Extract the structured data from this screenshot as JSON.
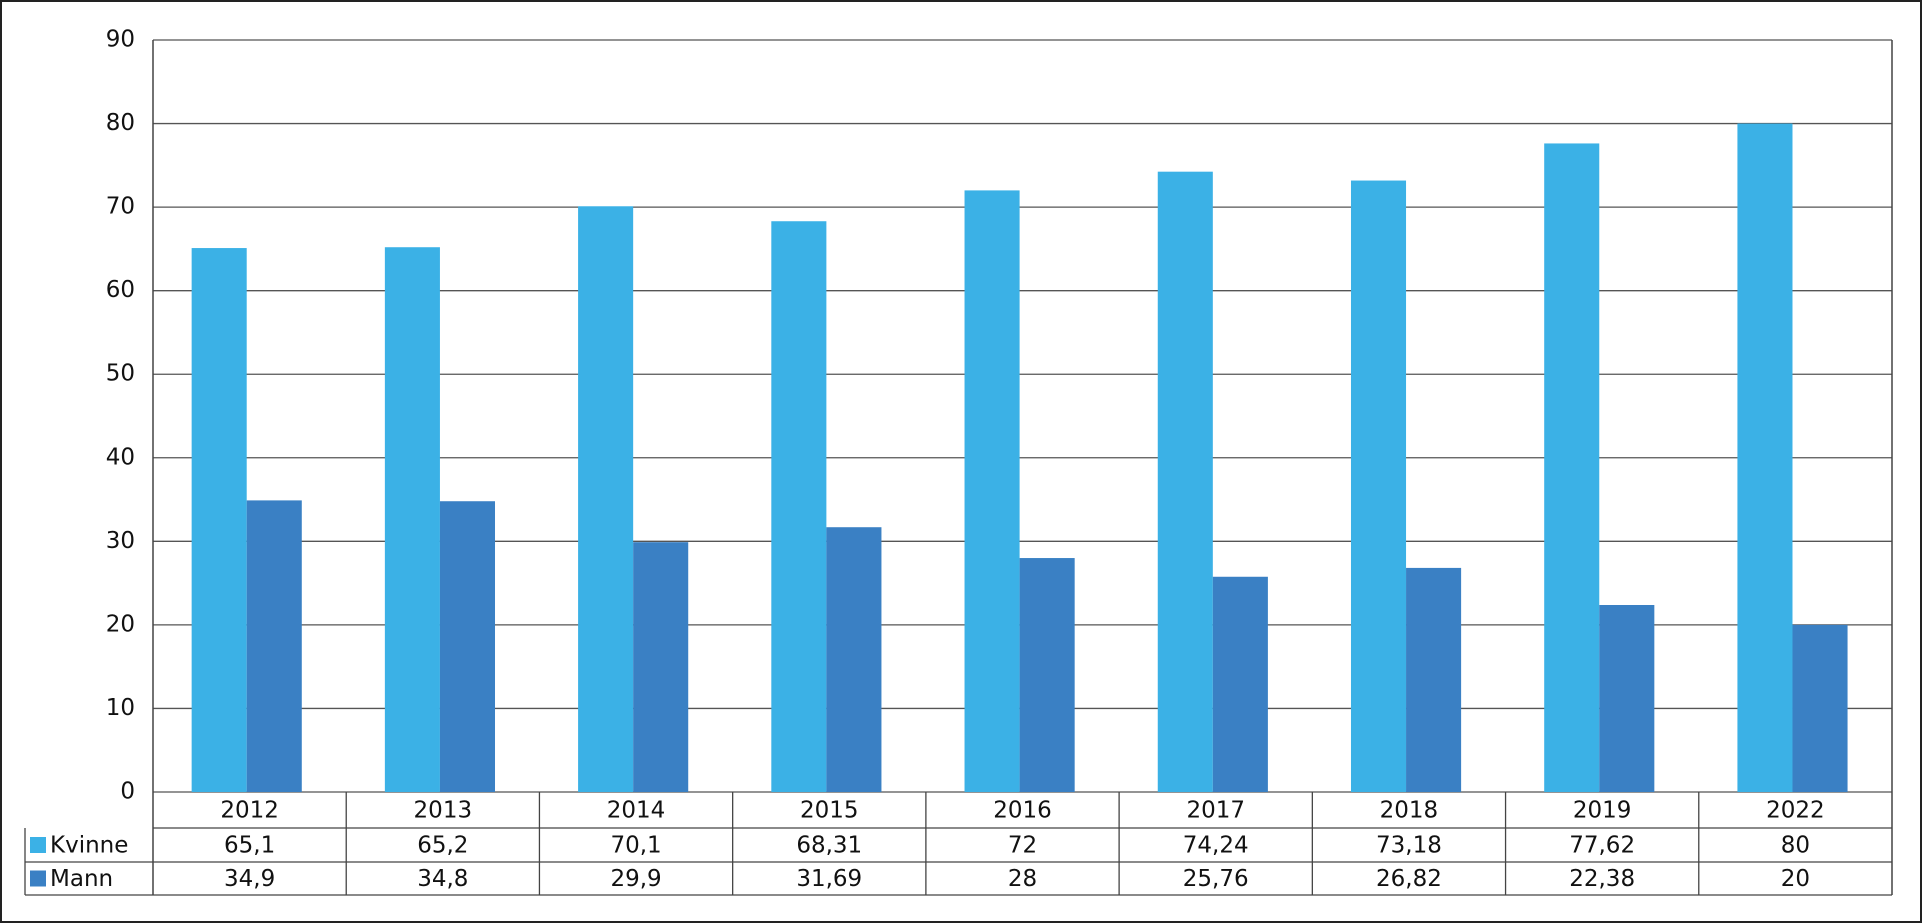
{
  "chart_data": {
    "type": "bar",
    "categories": [
      "2012",
      "2013",
      "2014",
      "2015",
      "2016",
      "2017",
      "2018",
      "2019",
      "2022"
    ],
    "series": [
      {
        "name": "Kvinne",
        "color": "#3bb1e6",
        "values": [
          65.1,
          65.2,
          70.1,
          68.31,
          72,
          74.24,
          73.18,
          77.62,
          80
        ],
        "value_labels": [
          "65,1",
          "65,2",
          "70,1",
          "68,31",
          "72",
          "74,24",
          "73,18",
          "77,62",
          "80"
        ]
      },
      {
        "name": "Mann",
        "color": "#3a80c4",
        "values": [
          34.9,
          34.8,
          29.9,
          31.69,
          28,
          25.76,
          26.82,
          22.38,
          20
        ],
        "value_labels": [
          "34,9",
          "34,8",
          "29,9",
          "31,69",
          "28",
          "25,76",
          "26,82",
          "22,38",
          "20"
        ]
      }
    ],
    "ylim": [
      0,
      90
    ],
    "yticks": [
      0,
      10,
      20,
      30,
      40,
      50,
      60,
      70,
      80,
      90
    ],
    "grid": true
  }
}
